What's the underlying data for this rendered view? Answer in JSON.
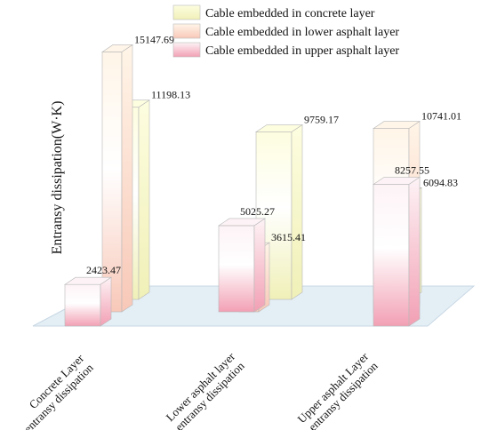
{
  "chart_data": {
    "type": "bar",
    "style": "3d-clustered",
    "ylabel": "Entransy dissipation(W·K)",
    "xlabel": "",
    "categories": [
      [
        "Concrete Layer",
        "entransy dissipation"
      ],
      [
        "Lower asphalt layer",
        "entransy dissipation"
      ],
      [
        "Upper asphalt Layer",
        "entransy dissipation"
      ]
    ],
    "series": [
      {
        "name": "Cable embedded in concrete layer",
        "values": [
          11198.13,
          9759.17,
          6094.83
        ],
        "color_top": "#fdfde0",
        "color_bottom": "#f0f0b8"
      },
      {
        "name": "Cable embedded in lower asphalt layer",
        "values": [
          15147.69,
          3615.41,
          10741.01
        ],
        "color_top": "#fff5e8",
        "color_bottom": "#f8c8b8"
      },
      {
        "name": "Cable embedded in upper asphalt layer",
        "values": [
          2423.47,
          5025.27,
          8257.55
        ],
        "color_top": "#fdf3f6",
        "color_bottom": "#f2a0b4"
      }
    ],
    "data_labels": [
      [
        "11198.13",
        "9759.17",
        "6094.83"
      ],
      [
        "15147.69",
        "3615.41",
        "10741.01"
      ],
      [
        "2423.47",
        "5025.27",
        "8257.55"
      ]
    ],
    "ylim": [
      0,
      16000
    ],
    "legend": "top-right",
    "grid": false,
    "floor_color": "#e4eef5"
  }
}
